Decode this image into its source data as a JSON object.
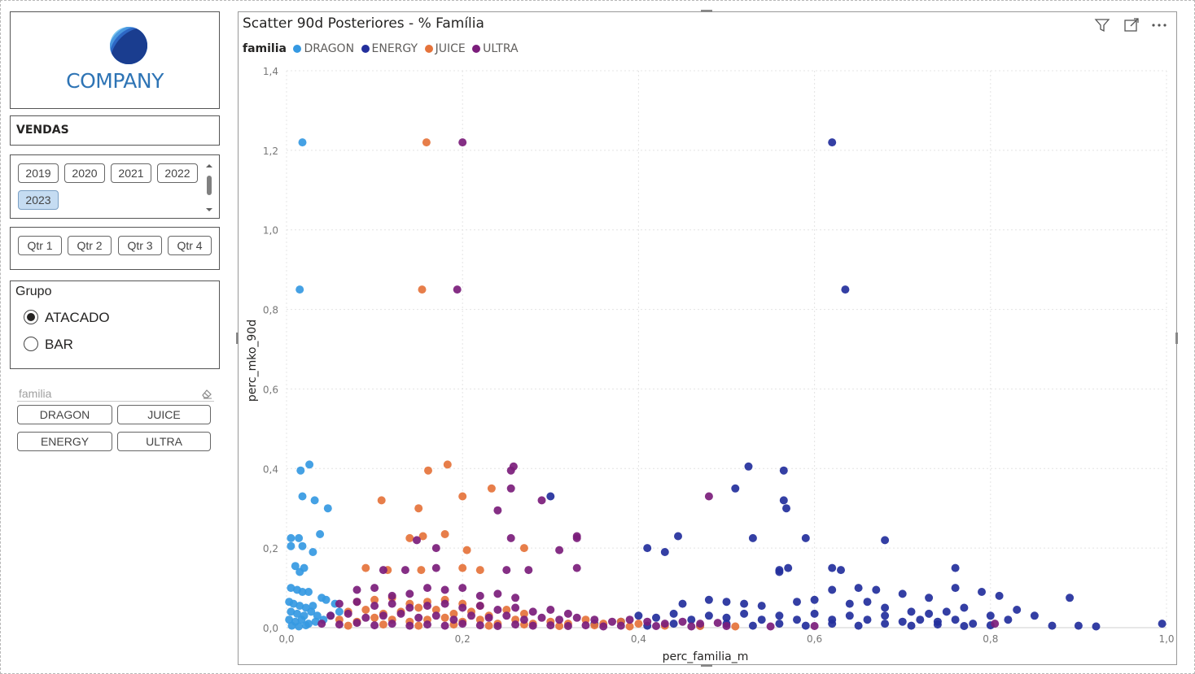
{
  "logo": {
    "text": "COMPANY",
    "colors": [
      "#1a3d8f",
      "#2d67c4",
      "#4a98e0",
      "#7cc6f0"
    ]
  },
  "vendas": {
    "title": "VENDAS"
  },
  "years": {
    "options": [
      "2019",
      "2020",
      "2021",
      "2022",
      "2023"
    ],
    "selected": "2023"
  },
  "quarters": {
    "options": [
      "Qtr 1",
      "Qtr 2",
      "Qtr 3",
      "Qtr 4"
    ]
  },
  "grupo": {
    "title": "Grupo",
    "options": [
      {
        "label": "ATACADO",
        "checked": true
      },
      {
        "label": "BAR",
        "checked": false
      }
    ]
  },
  "familia_slicer": {
    "label": "familia",
    "eraser_icon": "eraser-icon",
    "options": [
      "DRAGON",
      "JUICE",
      "ENERGY",
      "ULTRA"
    ]
  },
  "chart_tools": [
    "filter-icon",
    "focus-mode-icon",
    "more-options-icon"
  ],
  "chart_data": {
    "type": "scatter",
    "title": "Scatter 90d Posteriores - % Família",
    "xlabel": "perc_familia_m",
    "ylabel": "perc_mko_90d",
    "xlim": [
      0,
      1
    ],
    "ylim": [
      0,
      1.4
    ],
    "xticks": [
      "0,0",
      "0,2",
      "0,4",
      "0,6",
      "0,8",
      "1,0"
    ],
    "yticks": [
      "0,0",
      "0,2",
      "0,4",
      "0,6",
      "0,8",
      "1,0",
      "1,2",
      "1,4"
    ],
    "grid": true,
    "legend_title": "familia",
    "legend_position": "top-left",
    "series": [
      {
        "name": "DRAGON",
        "color": "#3599e2",
        "points": [
          [
            0.018,
            1.22
          ],
          [
            0.015,
            0.85
          ],
          [
            0.026,
            0.41
          ],
          [
            0.016,
            0.395
          ],
          [
            0.018,
            0.33
          ],
          [
            0.032,
            0.32
          ],
          [
            0.047,
            0.3
          ],
          [
            0.005,
            0.225
          ],
          [
            0.014,
            0.225
          ],
          [
            0.038,
            0.235
          ],
          [
            0.005,
            0.205
          ],
          [
            0.018,
            0.205
          ],
          [
            0.03,
            0.19
          ],
          [
            0.01,
            0.155
          ],
          [
            0.015,
            0.14
          ],
          [
            0.02,
            0.15
          ],
          [
            0.005,
            0.1
          ],
          [
            0.012,
            0.095
          ],
          [
            0.018,
            0.09
          ],
          [
            0.025,
            0.09
          ],
          [
            0.04,
            0.075
          ],
          [
            0.045,
            0.07
          ],
          [
            0.003,
            0.065
          ],
          [
            0.008,
            0.06
          ],
          [
            0.015,
            0.055
          ],
          [
            0.022,
            0.05
          ],
          [
            0.03,
            0.055
          ],
          [
            0.005,
            0.04
          ],
          [
            0.012,
            0.035
          ],
          [
            0.02,
            0.03
          ],
          [
            0.028,
            0.04
          ],
          [
            0.035,
            0.03
          ],
          [
            0.003,
            0.02
          ],
          [
            0.01,
            0.015
          ],
          [
            0.017,
            0.02
          ],
          [
            0.025,
            0.01
          ],
          [
            0.033,
            0.015
          ],
          [
            0.006,
            0.005
          ],
          [
            0.014,
            0.003
          ],
          [
            0.022,
            0.006
          ],
          [
            0.042,
            0.02
          ],
          [
            0.05,
            0.03
          ],
          [
            0.055,
            0.06
          ],
          [
            0.06,
            0.04
          ]
        ]
      },
      {
        "name": "ENERGY",
        "color": "#232f9c",
        "points": [
          [
            0.62,
            1.22
          ],
          [
            0.635,
            0.85
          ],
          [
            0.525,
            0.405
          ],
          [
            0.565,
            0.395
          ],
          [
            0.51,
            0.35
          ],
          [
            0.565,
            0.32
          ],
          [
            0.568,
            0.3
          ],
          [
            0.3,
            0.33
          ],
          [
            0.445,
            0.23
          ],
          [
            0.53,
            0.225
          ],
          [
            0.59,
            0.225
          ],
          [
            0.68,
            0.22
          ],
          [
            0.41,
            0.2
          ],
          [
            0.43,
            0.19
          ],
          [
            0.57,
            0.15
          ],
          [
            0.56,
            0.14
          ],
          [
            0.62,
            0.15
          ],
          [
            0.63,
            0.145
          ],
          [
            0.76,
            0.15
          ],
          [
            0.56,
            0.145
          ],
          [
            0.62,
            0.095
          ],
          [
            0.65,
            0.1
          ],
          [
            0.67,
            0.095
          ],
          [
            0.76,
            0.1
          ],
          [
            0.79,
            0.09
          ],
          [
            0.89,
            0.075
          ],
          [
            0.7,
            0.085
          ],
          [
            0.73,
            0.075
          ],
          [
            0.81,
            0.08
          ],
          [
            0.83,
            0.045
          ],
          [
            0.85,
            0.03
          ],
          [
            0.87,
            0.005
          ],
          [
            0.9,
            0.005
          ],
          [
            0.92,
            0.003
          ],
          [
            0.995,
            0.01
          ],
          [
            0.45,
            0.06
          ],
          [
            0.48,
            0.07
          ],
          [
            0.5,
            0.065
          ],
          [
            0.52,
            0.06
          ],
          [
            0.54,
            0.055
          ],
          [
            0.58,
            0.065
          ],
          [
            0.6,
            0.07
          ],
          [
            0.64,
            0.06
          ],
          [
            0.66,
            0.065
          ],
          [
            0.68,
            0.05
          ],
          [
            0.71,
            0.04
          ],
          [
            0.73,
            0.035
          ],
          [
            0.75,
            0.04
          ],
          [
            0.77,
            0.05
          ],
          [
            0.8,
            0.03
          ],
          [
            0.82,
            0.02
          ],
          [
            0.4,
            0.03
          ],
          [
            0.42,
            0.025
          ],
          [
            0.44,
            0.035
          ],
          [
            0.46,
            0.02
          ],
          [
            0.48,
            0.03
          ],
          [
            0.5,
            0.025
          ],
          [
            0.52,
            0.035
          ],
          [
            0.54,
            0.02
          ],
          [
            0.56,
            0.03
          ],
          [
            0.58,
            0.02
          ],
          [
            0.6,
            0.035
          ],
          [
            0.62,
            0.02
          ],
          [
            0.64,
            0.03
          ],
          [
            0.66,
            0.02
          ],
          [
            0.68,
            0.03
          ],
          [
            0.7,
            0.015
          ],
          [
            0.72,
            0.02
          ],
          [
            0.74,
            0.015
          ],
          [
            0.76,
            0.02
          ],
          [
            0.78,
            0.01
          ],
          [
            0.35,
            0.01
          ],
          [
            0.38,
            0.015
          ],
          [
            0.41,
            0.005
          ],
          [
            0.44,
            0.01
          ],
          [
            0.47,
            0.005
          ],
          [
            0.5,
            0.01
          ],
          [
            0.53,
            0.005
          ],
          [
            0.56,
            0.01
          ],
          [
            0.59,
            0.005
          ],
          [
            0.62,
            0.01
          ],
          [
            0.65,
            0.005
          ],
          [
            0.68,
            0.01
          ],
          [
            0.71,
            0.005
          ],
          [
            0.74,
            0.008
          ],
          [
            0.77,
            0.004
          ],
          [
            0.8,
            0.006
          ]
        ]
      },
      {
        "name": "JUICE",
        "color": "#e5733b",
        "points": [
          [
            0.159,
            1.22
          ],
          [
            0.154,
            0.85
          ],
          [
            0.183,
            0.41
          ],
          [
            0.161,
            0.395
          ],
          [
            0.2,
            0.33
          ],
          [
            0.233,
            0.35
          ],
          [
            0.108,
            0.32
          ],
          [
            0.15,
            0.3
          ],
          [
            0.18,
            0.235
          ],
          [
            0.14,
            0.225
          ],
          [
            0.155,
            0.23
          ],
          [
            0.205,
            0.195
          ],
          [
            0.27,
            0.2
          ],
          [
            0.09,
            0.15
          ],
          [
            0.115,
            0.145
          ],
          [
            0.153,
            0.145
          ],
          [
            0.2,
            0.15
          ],
          [
            0.22,
            0.145
          ],
          [
            0.08,
            0.065
          ],
          [
            0.1,
            0.07
          ],
          [
            0.12,
            0.075
          ],
          [
            0.14,
            0.06
          ],
          [
            0.16,
            0.065
          ],
          [
            0.18,
            0.07
          ],
          [
            0.2,
            0.06
          ],
          [
            0.22,
            0.055
          ],
          [
            0.07,
            0.04
          ],
          [
            0.09,
            0.045
          ],
          [
            0.11,
            0.035
          ],
          [
            0.13,
            0.04
          ],
          [
            0.15,
            0.05
          ],
          [
            0.17,
            0.045
          ],
          [
            0.19,
            0.035
          ],
          [
            0.21,
            0.04
          ],
          [
            0.23,
            0.03
          ],
          [
            0.25,
            0.045
          ],
          [
            0.27,
            0.035
          ],
          [
            0.06,
            0.02
          ],
          [
            0.08,
            0.015
          ],
          [
            0.1,
            0.025
          ],
          [
            0.12,
            0.02
          ],
          [
            0.14,
            0.015
          ],
          [
            0.16,
            0.02
          ],
          [
            0.18,
            0.025
          ],
          [
            0.2,
            0.015
          ],
          [
            0.22,
            0.02
          ],
          [
            0.24,
            0.01
          ],
          [
            0.26,
            0.02
          ],
          [
            0.28,
            0.01
          ],
          [
            0.3,
            0.015
          ],
          [
            0.32,
            0.01
          ],
          [
            0.34,
            0.02
          ],
          [
            0.36,
            0.01
          ],
          [
            0.38,
            0.015
          ],
          [
            0.4,
            0.01
          ],
          [
            0.07,
            0.005
          ],
          [
            0.11,
            0.008
          ],
          [
            0.15,
            0.005
          ],
          [
            0.19,
            0.008
          ],
          [
            0.23,
            0.005
          ],
          [
            0.27,
            0.008
          ],
          [
            0.31,
            0.004
          ],
          [
            0.35,
            0.006
          ],
          [
            0.39,
            0.003
          ],
          [
            0.43,
            0.005
          ],
          [
            0.47,
            0.004
          ],
          [
            0.51,
            0.003
          ]
        ]
      },
      {
        "name": "ULTRA",
        "color": "#7b1d7b",
        "points": [
          [
            0.2,
            1.22
          ],
          [
            0.194,
            0.85
          ],
          [
            0.258,
            0.405
          ],
          [
            0.255,
            0.395
          ],
          [
            0.255,
            0.35
          ],
          [
            0.29,
            0.32
          ],
          [
            0.48,
            0.33
          ],
          [
            0.24,
            0.295
          ],
          [
            0.33,
            0.23
          ],
          [
            0.33,
            0.225
          ],
          [
            0.255,
            0.225
          ],
          [
            0.148,
            0.22
          ],
          [
            0.31,
            0.195
          ],
          [
            0.17,
            0.2
          ],
          [
            0.11,
            0.145
          ],
          [
            0.135,
            0.145
          ],
          [
            0.17,
            0.15
          ],
          [
            0.25,
            0.145
          ],
          [
            0.275,
            0.145
          ],
          [
            0.33,
            0.15
          ],
          [
            0.08,
            0.095
          ],
          [
            0.1,
            0.1
          ],
          [
            0.12,
            0.08
          ],
          [
            0.14,
            0.085
          ],
          [
            0.16,
            0.1
          ],
          [
            0.18,
            0.095
          ],
          [
            0.2,
            0.1
          ],
          [
            0.22,
            0.08
          ],
          [
            0.24,
            0.085
          ],
          [
            0.26,
            0.075
          ],
          [
            0.06,
            0.06
          ],
          [
            0.08,
            0.065
          ],
          [
            0.1,
            0.055
          ],
          [
            0.12,
            0.06
          ],
          [
            0.14,
            0.05
          ],
          [
            0.16,
            0.055
          ],
          [
            0.18,
            0.06
          ],
          [
            0.2,
            0.05
          ],
          [
            0.22,
            0.055
          ],
          [
            0.24,
            0.045
          ],
          [
            0.26,
            0.05
          ],
          [
            0.28,
            0.04
          ],
          [
            0.3,
            0.045
          ],
          [
            0.32,
            0.035
          ],
          [
            0.05,
            0.03
          ],
          [
            0.07,
            0.035
          ],
          [
            0.09,
            0.025
          ],
          [
            0.11,
            0.03
          ],
          [
            0.13,
            0.035
          ],
          [
            0.15,
            0.025
          ],
          [
            0.17,
            0.03
          ],
          [
            0.19,
            0.02
          ],
          [
            0.21,
            0.03
          ],
          [
            0.23,
            0.025
          ],
          [
            0.25,
            0.03
          ],
          [
            0.27,
            0.02
          ],
          [
            0.29,
            0.025
          ],
          [
            0.31,
            0.02
          ],
          [
            0.33,
            0.025
          ],
          [
            0.35,
            0.02
          ],
          [
            0.37,
            0.015
          ],
          [
            0.39,
            0.02
          ],
          [
            0.41,
            0.015
          ],
          [
            0.43,
            0.01
          ],
          [
            0.45,
            0.015
          ],
          [
            0.47,
            0.01
          ],
          [
            0.49,
            0.012
          ],
          [
            0.04,
            0.01
          ],
          [
            0.06,
            0.008
          ],
          [
            0.08,
            0.012
          ],
          [
            0.1,
            0.006
          ],
          [
            0.12,
            0.01
          ],
          [
            0.14,
            0.005
          ],
          [
            0.16,
            0.008
          ],
          [
            0.18,
            0.005
          ],
          [
            0.2,
            0.01
          ],
          [
            0.22,
            0.006
          ],
          [
            0.24,
            0.004
          ],
          [
            0.26,
            0.008
          ],
          [
            0.28,
            0.005
          ],
          [
            0.3,
            0.006
          ],
          [
            0.32,
            0.004
          ],
          [
            0.34,
            0.006
          ],
          [
            0.36,
            0.003
          ],
          [
            0.38,
            0.005
          ],
          [
            0.42,
            0.004
          ],
          [
            0.46,
            0.003
          ],
          [
            0.5,
            0.004
          ],
          [
            0.55,
            0.003
          ],
          [
            0.6,
            0.004
          ],
          [
            0.805,
            0.01
          ]
        ]
      }
    ]
  }
}
